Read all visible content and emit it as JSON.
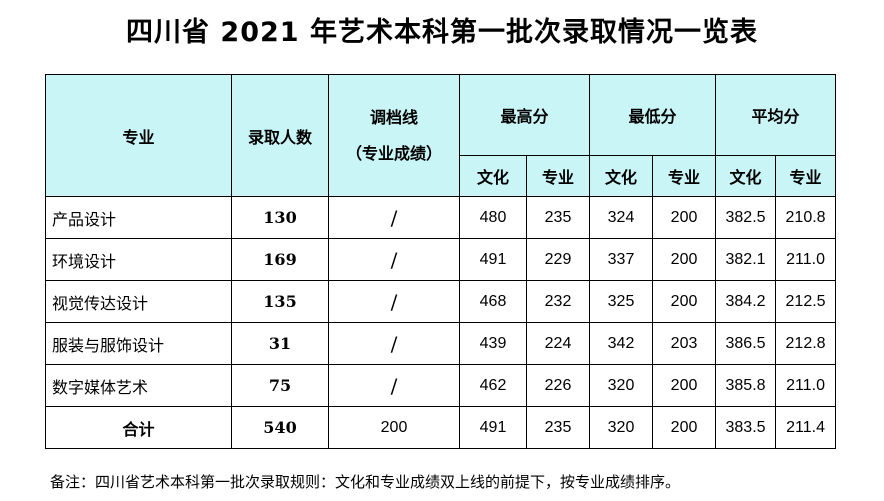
{
  "title": "四川省 2021 年艺术本科第一批次录取情况一览表",
  "headers": {
    "major": "专业",
    "admitted": "录取人数",
    "control_line": "调档线",
    "control_line_sub": "（专业成绩）",
    "highest": "最高分",
    "lowest": "最低分",
    "average": "平均分",
    "culture": "文化",
    "professional": "专业"
  },
  "rows": [
    {
      "major": "产品设计",
      "admitted": "130",
      "control_line": "/",
      "high_culture": "480",
      "high_prof": "235",
      "low_culture": "324",
      "low_prof": "200",
      "avg_culture": "382.5",
      "avg_prof": "210.8"
    },
    {
      "major": "环境设计",
      "admitted": "169",
      "control_line": "/",
      "high_culture": "491",
      "high_prof": "229",
      "low_culture": "337",
      "low_prof": "200",
      "avg_culture": "382.1",
      "avg_prof": "211.0"
    },
    {
      "major": "视觉传达设计",
      "admitted": "135",
      "control_line": "/",
      "high_culture": "468",
      "high_prof": "232",
      "low_culture": "325",
      "low_prof": "200",
      "avg_culture": "384.2",
      "avg_prof": "212.5"
    },
    {
      "major": "服装与服饰设计",
      "admitted": "31",
      "control_line": "/",
      "high_culture": "439",
      "high_prof": "224",
      "low_culture": "342",
      "low_prof": "203",
      "avg_culture": "386.5",
      "avg_prof": "212.8"
    },
    {
      "major": "数字媒体艺术",
      "admitted": "75",
      "control_line": "/",
      "high_culture": "462",
      "high_prof": "226",
      "low_culture": "320",
      "low_prof": "200",
      "avg_culture": "385.8",
      "avg_prof": "211.0"
    }
  ],
  "total": {
    "major": "合计",
    "admitted": "540",
    "control_line": "200",
    "high_culture": "491",
    "high_prof": "235",
    "low_culture": "320",
    "low_prof": "200",
    "avg_culture": "383.5",
    "avg_prof": "211.4"
  },
  "note": "备注：四川省艺术本科第一批次录取规则：文化和专业成绩双上线的前提下，按专业成绩排序。",
  "colors": {
    "header_bg": "#c9f5f7",
    "border": "#000000"
  }
}
